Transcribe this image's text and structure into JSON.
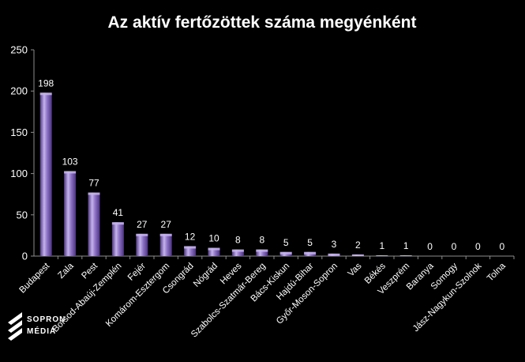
{
  "chart_data": {
    "type": "bar",
    "title": "Az aktív fertőzöttek száma megyénként",
    "xlabel": "",
    "ylabel": "",
    "ylim": [
      0,
      250
    ],
    "yticks": [
      0,
      50,
      100,
      150,
      200,
      250
    ],
    "grid": false,
    "legend": "none",
    "categories": [
      "Budapest",
      "Zala",
      "Pest",
      "Borsod-Abaúj-Zemplén",
      "Fejér",
      "Komárom-Esztergom",
      "Csongrád",
      "Nógrád",
      "Heves",
      "Szabolcs-Szatmár-Bereg",
      "Bács-Kiskun",
      "Hajdú-Bihar",
      "Győr-Moson-Sopron",
      "Vas",
      "Békés",
      "Veszprém",
      "Baranya",
      "Somogy",
      "Jász-Nagykun-Szolnok",
      "Tolna"
    ],
    "values": [
      198,
      103,
      77,
      41,
      27,
      27,
      12,
      10,
      8,
      8,
      5,
      5,
      3,
      2,
      1,
      1,
      0,
      0,
      0,
      0
    ],
    "colors": {
      "background": "#000000",
      "bar": "#8f72c8",
      "bar_dark": "#4e3780",
      "bar_light": "#c5b3ee",
      "axis": "#8c8c8c",
      "text": "#ffffff"
    }
  },
  "logo": {
    "line1": "SOPRON",
    "line2": "MÉDIA"
  }
}
